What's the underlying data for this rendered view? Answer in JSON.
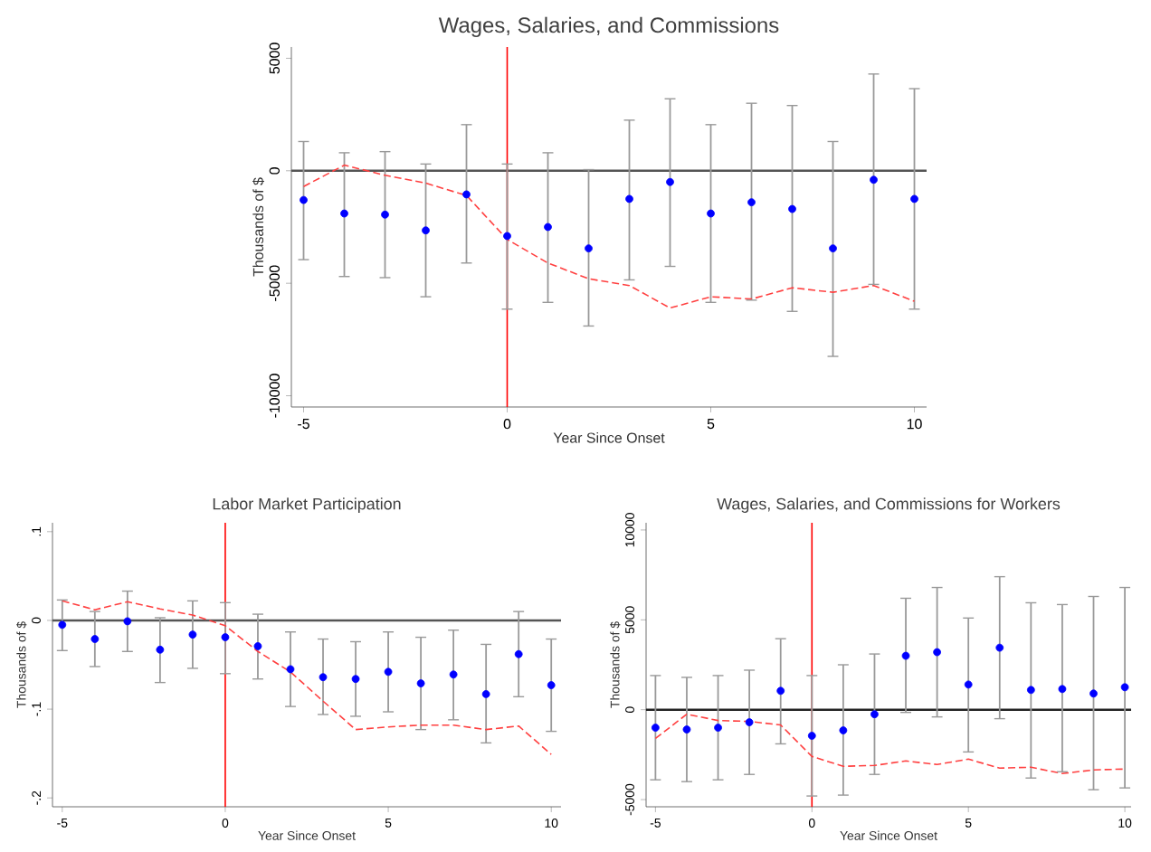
{
  "chart_data": [
    {
      "type": "scatter",
      "title": "Wages, Salaries, and Commissions",
      "xlabel": "Year Since Onset",
      "ylabel": "Thousands of $",
      "x": [
        -5,
        -4,
        -3,
        -2,
        -1,
        0,
        1,
        2,
        3,
        4,
        5,
        6,
        7,
        8,
        9,
        10
      ],
      "xlim": [
        -5.3,
        10.3
      ],
      "xticks": [
        -5,
        0,
        5,
        10
      ],
      "ylim": [
        -10500,
        5500
      ],
      "yticks": [
        -10000,
        -5000,
        0,
        5000
      ],
      "series": [
        {
          "color": "#0000ff",
          "marker": "circle",
          "values": [
            -1300,
            -1900,
            -1950,
            -2650,
            -1050,
            -2900,
            -2500,
            -3450,
            -1250,
            -500,
            -1900,
            -1400,
            -1700,
            -3450,
            -400,
            -1250
          ],
          "errors": [
            [
              -3950,
              1300
            ],
            [
              -4700,
              800
            ],
            [
              -4750,
              850
            ],
            [
              -5600,
              300
            ],
            [
              -4100,
              2050
            ],
            [
              -6150,
              300
            ],
            [
              -5850,
              800
            ],
            [
              -6900,
              50
            ],
            [
              -4850,
              2250
            ],
            [
              -4250,
              3200
            ],
            [
              -5850,
              2050
            ],
            [
              -5750,
              3000
            ],
            [
              -6250,
              2900
            ],
            [
              -8250,
              1300
            ],
            [
              -5050,
              4300
            ],
            [
              -6150,
              3650
            ]
          ]
        },
        {
          "type": "line",
          "color": "#ff4040",
          "line_style": "dashed",
          "marker": "none",
          "values": [
            -700,
            250,
            -200,
            -550,
            -1100,
            -3050,
            -4100,
            -4800,
            -5100,
            -6100,
            -5600,
            -5700,
            -5200,
            -5400,
            -5100,
            -5800
          ]
        }
      ],
      "ref_lines": [
        {
          "axis": "y",
          "value": 0,
          "color": "#555555"
        },
        {
          "axis": "x",
          "value": 0,
          "color": "#ff0000"
        }
      ]
    },
    {
      "type": "scatter",
      "title": "Labor Market Participation",
      "xlabel": "Year Since Onset",
      "ylabel": "Thousands of $",
      "x": [
        -5,
        -4,
        -3,
        -2,
        -1,
        0,
        1,
        2,
        3,
        4,
        5,
        6,
        7,
        8,
        9,
        10
      ],
      "xlim": [
        -5.3,
        10.3
      ],
      "xticks": [
        -5,
        0,
        5,
        10
      ],
      "ylim": [
        -0.21,
        0.11
      ],
      "yticks": [
        {
          "value": -0.2,
          "label": "-.2"
        },
        {
          "value": -0.1,
          "label": "-.1"
        },
        0,
        {
          "value": 0.1,
          "label": ".1"
        }
      ],
      "series": [
        {
          "color": "#0000ff",
          "marker": "circle",
          "values": [
            -0.005,
            -0.021,
            -0.001,
            -0.033,
            -0.016,
            -0.019,
            -0.029,
            -0.055,
            -0.064,
            -0.066,
            -0.058,
            -0.071,
            -0.061,
            -0.083,
            -0.038,
            -0.073
          ],
          "errors": [
            [
              -0.034,
              0.023
            ],
            [
              -0.052,
              0.01
            ],
            [
              -0.035,
              0.033
            ],
            [
              -0.07,
              0.003
            ],
            [
              -0.054,
              0.022
            ],
            [
              -0.06,
              0.02
            ],
            [
              -0.066,
              0.007
            ],
            [
              -0.097,
              -0.013
            ],
            [
              -0.106,
              -0.021
            ],
            [
              -0.108,
              -0.024
            ],
            [
              -0.103,
              -0.013
            ],
            [
              -0.123,
              -0.019
            ],
            [
              -0.112,
              -0.011
            ],
            [
              -0.138,
              -0.027
            ],
            [
              -0.086,
              0.01
            ],
            [
              -0.125,
              -0.021
            ]
          ]
        },
        {
          "type": "line",
          "color": "#ff4040",
          "line_style": "dashed",
          "marker": "none",
          "values": [
            0.022,
            0.012,
            0.021,
            0.013,
            0.006,
            -0.006,
            -0.035,
            -0.058,
            -0.091,
            -0.123,
            -0.12,
            -0.118,
            -0.118,
            -0.123,
            -0.119,
            -0.151
          ]
        }
      ],
      "ref_lines": [
        {
          "axis": "y",
          "value": 0,
          "color": "#555555"
        },
        {
          "axis": "x",
          "value": 0,
          "color": "#ff0000"
        }
      ]
    },
    {
      "type": "scatter",
      "title": "Wages, Salaries, and Commissions for Workers",
      "xlabel": "Year Since Onset",
      "ylabel": "Thousands of $",
      "x": [
        -5,
        -4,
        -3,
        -2,
        -1,
        0,
        1,
        2,
        3,
        4,
        5,
        6,
        7,
        8,
        9,
        10
      ],
      "xlim": [
        -5.3,
        10.2
      ],
      "xticks": [
        -5,
        0,
        5,
        10
      ],
      "ylim": [
        -5400,
        10400
      ],
      "yticks": [
        -5000,
        0,
        5000,
        10000
      ],
      "series": [
        {
          "color": "#0000ff",
          "marker": "circle",
          "values": [
            -1000,
            -1100,
            -1000,
            -700,
            1050,
            -1450,
            -1150,
            -250,
            3000,
            3200,
            1400,
            3450,
            1100,
            1150,
            900,
            1250
          ],
          "errors": [
            [
              -3900,
              1900
            ],
            [
              -4000,
              1800
            ],
            [
              -3900,
              1900
            ],
            [
              -3600,
              2200
            ],
            [
              -1900,
              3950
            ],
            [
              -4800,
              1900
            ],
            [
              -4750,
              2500
            ],
            [
              -3600,
              3100
            ],
            [
              -150,
              6200
            ],
            [
              -400,
              6800
            ],
            [
              -2350,
              5100
            ],
            [
              -500,
              7400
            ],
            [
              -3800,
              5950
            ],
            [
              -3450,
              5850
            ],
            [
              -4450,
              6300
            ],
            [
              -4350,
              6800
            ]
          ]
        },
        {
          "type": "line",
          "color": "#ff4040",
          "line_style": "dashed",
          "marker": "none",
          "values": [
            -1600,
            -250,
            -600,
            -650,
            -850,
            -2600,
            -3150,
            -3100,
            -2850,
            -3050,
            -2750,
            -3250,
            -3200,
            -3550,
            -3350,
            -3300
          ]
        }
      ],
      "ref_lines": [
        {
          "axis": "y",
          "value": 0,
          "color": "#222222"
        },
        {
          "axis": "x",
          "value": 0,
          "color": "#ff0000"
        }
      ]
    }
  ]
}
